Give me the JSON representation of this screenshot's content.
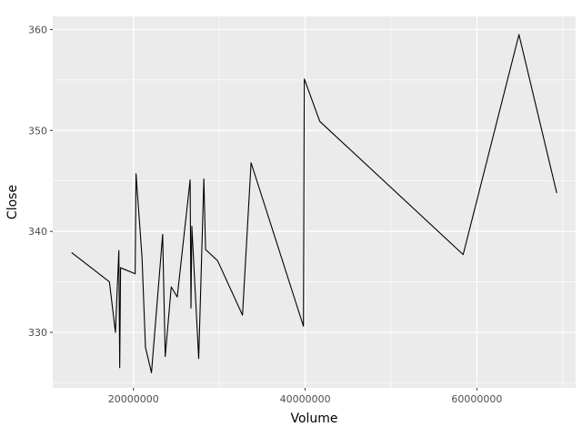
{
  "chart_data": {
    "type": "line",
    "title": "",
    "xlabel": "Volume",
    "ylabel": "Close",
    "xlim": [
      10600000,
      71500000
    ],
    "ylim": [
      324.5,
      361.3
    ],
    "x_ticks": [
      20000000,
      40000000,
      60000000
    ],
    "x_tick_labels": [
      "20000000",
      "40000000",
      "60000000"
    ],
    "y_ticks": [
      330,
      340,
      350,
      360
    ],
    "y_tick_labels": [
      "330",
      "340",
      "350",
      "360"
    ],
    "grid": true,
    "line_color": "#000000",
    "panel_color": "#ebebeb",
    "grid_color": "#ffffff",
    "points": [
      [
        12800000,
        337.9
      ],
      [
        17200000,
        335.0
      ],
      [
        17900000,
        330.0
      ],
      [
        18300000,
        338.1
      ],
      [
        18400000,
        326.5
      ],
      [
        18500000,
        336.4
      ],
      [
        20200000,
        335.8
      ],
      [
        20300000,
        345.7
      ],
      [
        21000000,
        337.4
      ],
      [
        21400000,
        328.5
      ],
      [
        22100000,
        326.0
      ],
      [
        23400000,
        339.7
      ],
      [
        23700000,
        327.6
      ],
      [
        24400000,
        334.5
      ],
      [
        25100000,
        333.5
      ],
      [
        26600000,
        345.1
      ],
      [
        26700000,
        332.4
      ],
      [
        26800000,
        340.5
      ],
      [
        27600000,
        327.4
      ],
      [
        28200000,
        345.2
      ],
      [
        28400000,
        338.2
      ],
      [
        29800000,
        337.1
      ],
      [
        32700000,
        331.7
      ],
      [
        33700000,
        346.8
      ],
      [
        39800000,
        330.6
      ],
      [
        39900000,
        355.1
      ],
      [
        41700000,
        350.9
      ],
      [
        58400000,
        337.7
      ],
      [
        64900000,
        359.5
      ],
      [
        69300000,
        343.8
      ]
    ]
  }
}
